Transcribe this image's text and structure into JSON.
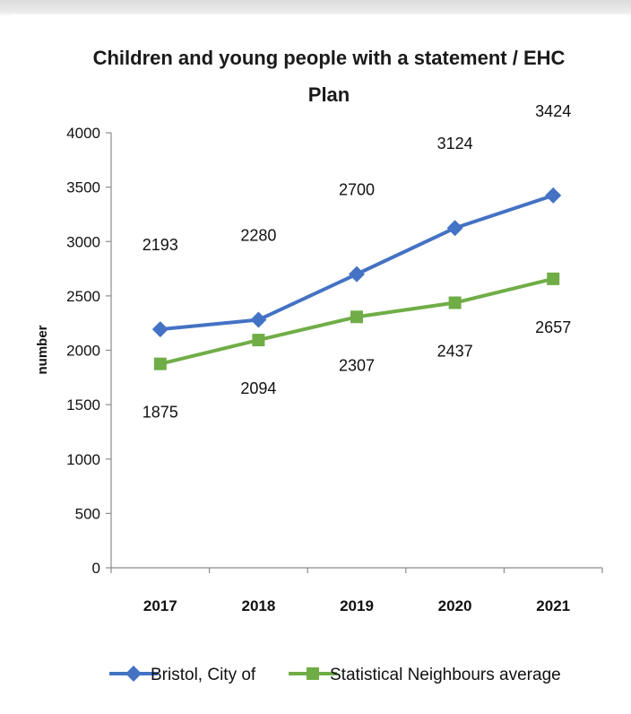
{
  "chart_data": {
    "type": "line",
    "title_line1": "Children and young people with a statement / EHC",
    "title_line2": "Plan",
    "xlabel": "",
    "ylabel": "number",
    "categories": [
      "2017",
      "2018",
      "2019",
      "2020",
      "2021"
    ],
    "ylim": [
      0,
      4000
    ],
    "yticks": [
      0,
      500,
      1000,
      1500,
      2000,
      2500,
      3000,
      3500,
      4000
    ],
    "grid": false,
    "legend_position": "bottom",
    "series": [
      {
        "name": "Bristol, City of",
        "values": [
          2193,
          2280,
          2700,
          3124,
          3424
        ],
        "color": "#4472C4",
        "marker": "diamond"
      },
      {
        "name": "Statistical Neighbours average",
        "values": [
          1875,
          2094,
          2307,
          2437,
          2657
        ],
        "color": "#70AD47",
        "marker": "square"
      }
    ]
  }
}
